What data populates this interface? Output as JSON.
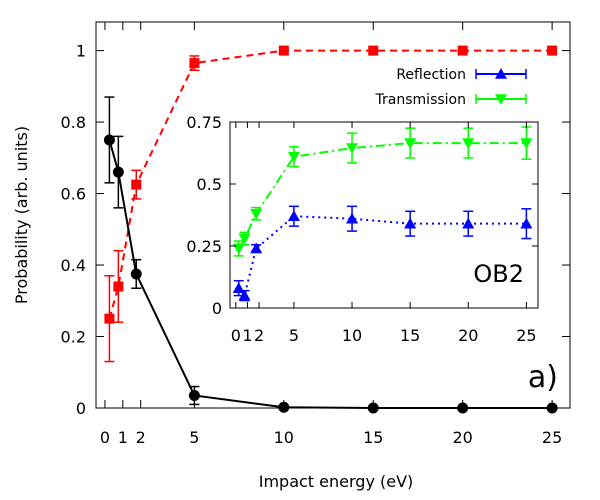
{
  "chart_data": {
    "type": "line",
    "xlabel": "Impact energy (eV)",
    "ylabel": "Probability (arb. units)",
    "xlim": [
      -0.5,
      26
    ],
    "ylim": [
      0,
      1.08
    ],
    "x_ticks": [
      0,
      1,
      2,
      5,
      10,
      15,
      20,
      25
    ],
    "x_tick_labels": [
      "0",
      "1",
      "2",
      "5",
      "10",
      "15",
      "20",
      "25"
    ],
    "y_ticks": [
      0,
      0.2,
      0.4,
      0.6,
      0.8,
      1
    ],
    "y_tick_labels": [
      "0",
      "0.2",
      "0.4",
      "0.6",
      "0.8",
      "1"
    ],
    "panel_label": "a)",
    "series": [
      {
        "name": "main-red",
        "color": "#ff0000",
        "marker": "square",
        "line": "dashed",
        "x": [
          0.25,
          0.75,
          1.75,
          5,
          10,
          15,
          20,
          25
        ],
        "y": [
          0.25,
          0.34,
          0.625,
          0.965,
          1.0,
          1.0,
          1.0,
          1.0
        ],
        "err": [
          0.12,
          0.1,
          0.04,
          0.02,
          0,
          0,
          0,
          0
        ]
      },
      {
        "name": "main-black",
        "color": "#000000",
        "marker": "circle",
        "line": "solid",
        "x": [
          0.25,
          0.75,
          1.75,
          5,
          10,
          15,
          20,
          25
        ],
        "y": [
          0.75,
          0.66,
          0.375,
          0.035,
          0.002,
          0.0,
          0.0,
          0.0
        ],
        "err": [
          0.12,
          0.1,
          0.04,
          0.025,
          0,
          0,
          0,
          0
        ]
      }
    ],
    "inset": {
      "label": "OB2",
      "xlim": [
        -0.5,
        26
      ],
      "ylim": [
        0,
        0.75
      ],
      "x_ticks": [
        0,
        1,
        2,
        5,
        10,
        15,
        20,
        25
      ],
      "x_tick_labels": [
        "0",
        "1",
        "2",
        "5",
        "10",
        "15",
        "20",
        "25"
      ],
      "y_ticks": [
        0,
        0.25,
        0.5,
        0.75
      ],
      "y_tick_labels": [
        "0",
        "0.25",
        "0.5",
        "0.75"
      ],
      "series": [
        {
          "name": "Reflection",
          "color": "#0000ff",
          "marker": "triangle-up",
          "line": "dotted",
          "x": [
            0.25,
            0.75,
            1.75,
            5,
            10,
            15,
            20,
            25
          ],
          "y": [
            0.08,
            0.05,
            0.24,
            0.37,
            0.36,
            0.34,
            0.34,
            0.34
          ],
          "err": [
            0.03,
            0.02,
            0.015,
            0.04,
            0.05,
            0.05,
            0.05,
            0.06
          ]
        },
        {
          "name": "Transmission",
          "color": "#00ff00",
          "marker": "triangle-down",
          "line": "dashdot",
          "x": [
            0.25,
            0.75,
            1.75,
            5,
            10,
            15,
            20,
            25
          ],
          "y": [
            0.24,
            0.28,
            0.38,
            0.61,
            0.645,
            0.665,
            0.665,
            0.665
          ],
          "err": [
            0.03,
            0.025,
            0.025,
            0.04,
            0.06,
            0.06,
            0.06,
            0.065
          ]
        }
      ]
    },
    "legend": {
      "placement": "top-right",
      "entries": [
        "Reflection",
        "Transmission"
      ]
    }
  }
}
